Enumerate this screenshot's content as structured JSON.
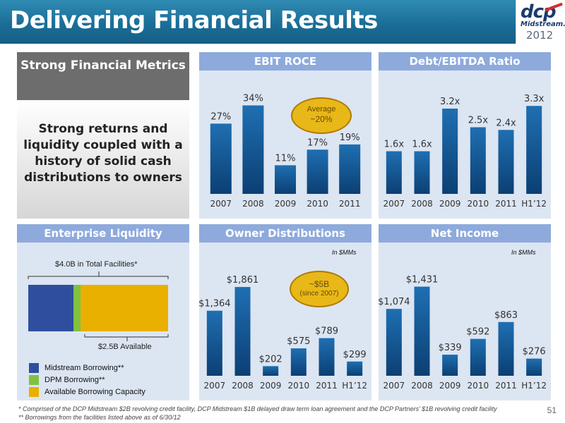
{
  "title": "Delivering Financial Results",
  "logo": {
    "brand": "dcp",
    "sub": "Midstream.",
    "year": "2012"
  },
  "left_panel": {
    "heading": "Strong  Financial Metrics",
    "body": "Strong returns and liquidity coupled with a history of solid cash distributions to owners"
  },
  "ebit_roce_callout": {
    "line1": "Average",
    "line2": "~20%"
  },
  "owner_callout": {
    "line1": "~$5B",
    "line2": "(since 2007)"
  },
  "enterprise_liquidity": {
    "title": "Enterprise Liquidity",
    "total_label": "$4.0B in Total Facilities*",
    "available_label": "$2.5B Available",
    "legend": [
      {
        "label": "Midstream Borrowing**",
        "color": "#2f4f9e"
      },
      {
        "label": "DPM Borrowing**",
        "color": "#7fc241"
      },
      {
        "label": "Available Borrowing Capacity",
        "color": "#e9b000"
      }
    ]
  },
  "units": {
    "owner": "In $MMs",
    "net_income": "In $MMs"
  },
  "footnotes": {
    "f1": "*  Comprised of the DCP Midstream $2B revolving credit facility, DCP Midstream $1B delayed draw term loan agreement and the DCP Partners’ $1B revolving credit facility",
    "f2": "** Borrowings from the facilities listed above as of 6/30/12"
  },
  "page_number": "51",
  "colors": {
    "bar_top": "#1f6fb2",
    "bar_bottom": "#0b3f73",
    "panel_bg": "#dce5f2",
    "panel_head": "#8eaadc"
  },
  "chart_data": [
    {
      "id": "ebit",
      "type": "bar",
      "title": "EBIT ROCE",
      "categories": [
        "2007",
        "2008",
        "2009",
        "2010",
        "2011"
      ],
      "values": [
        27,
        34,
        11,
        17,
        19
      ],
      "labels": [
        "27%",
        "34%",
        "11%",
        "17%",
        "19%"
      ],
      "ylim": [
        0,
        42
      ]
    },
    {
      "id": "debt",
      "type": "bar",
      "title": "Debt/EBITDA Ratio",
      "categories": [
        "2007",
        "2008",
        "2009",
        "2010",
        "2011",
        "H1’12"
      ],
      "values": [
        1.6,
        1.6,
        3.2,
        2.5,
        2.4,
        3.3
      ],
      "labels": [
        "1.6x",
        "1.6x",
        "3.2x",
        "2.5x",
        "2.4x",
        "3.3x"
      ],
      "ylim": [
        0,
        4.1
      ]
    },
    {
      "id": "liq",
      "type": "bar",
      "title": "Enterprise Liquidity",
      "categories": [
        "Midstream Borrowing**",
        "DPM Borrowing**",
        "Available Borrowing Capacity"
      ],
      "values": [
        1.3,
        0.2,
        2.5
      ],
      "units": "$B"
    },
    {
      "id": "owner",
      "type": "bar",
      "title": "Owner Distributions",
      "categories": [
        "2007",
        "2008",
        "2009",
        "2010",
        "2011",
        "H1’12"
      ],
      "values": [
        1364,
        1861,
        202,
        575,
        789,
        299
      ],
      "labels": [
        "$1,364",
        "$1,861",
        "$202",
        "$575",
        "$789",
        "$299"
      ],
      "ylim": [
        0,
        2350
      ]
    },
    {
      "id": "net",
      "type": "bar",
      "title": "Net Income",
      "categories": [
        "2007",
        "2008",
        "2009",
        "2010",
        "2011",
        "H1’12"
      ],
      "values": [
        1074,
        1431,
        339,
        592,
        863,
        276
      ],
      "labels": [
        "$1,074",
        "$1,431",
        "$339",
        "$592",
        "$863",
        "$276"
      ],
      "ylim": [
        0,
        1800
      ]
    }
  ]
}
